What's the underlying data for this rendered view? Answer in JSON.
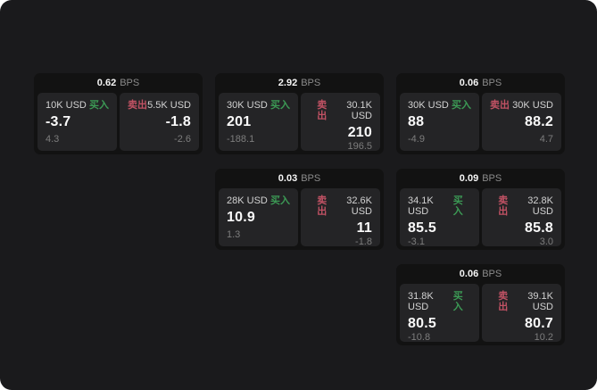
{
  "labels": {
    "bps_unit": "BPS",
    "buy": "买入",
    "sell": "卖出"
  },
  "colors": {
    "buy": "#3c9a55",
    "sell": "#c15264",
    "background": "#1a1a1c",
    "card": "#121212",
    "panel": "#242426"
  },
  "cards": [
    {
      "row": 1,
      "col": 1,
      "bps": "0.62",
      "buy": {
        "size": "10K USD",
        "value": "-3.7",
        "sub": "4.3"
      },
      "sell": {
        "size": "5.5K USD",
        "value": "-1.8",
        "sub": "-2.6"
      }
    },
    {
      "row": 1,
      "col": 2,
      "bps": "2.92",
      "buy": {
        "size": "30K USD",
        "value": "201",
        "sub": "-188.1"
      },
      "sell": {
        "size": "30.1K USD",
        "value": "210",
        "sub": "196.5"
      }
    },
    {
      "row": 1,
      "col": 3,
      "bps": "0.06",
      "buy": {
        "size": "30K USD",
        "value": "88",
        "sub": "-4.9"
      },
      "sell": {
        "size": "30K USD",
        "value": "88.2",
        "sub": "4.7"
      }
    },
    {
      "row": 2,
      "col": 2,
      "bps": "0.03",
      "buy": {
        "size": "28K USD",
        "value": "10.9",
        "sub": "1.3"
      },
      "sell": {
        "size": "32.6K USD",
        "value": "11",
        "sub": "-1.8"
      }
    },
    {
      "row": 2,
      "col": 3,
      "bps": "0.09",
      "buy": {
        "size": "34.1K USD",
        "value": "85.5",
        "sub": "-3.1"
      },
      "sell": {
        "size": "32.8K USD",
        "value": "85.8",
        "sub": "3.0"
      }
    },
    {
      "row": 3,
      "col": 3,
      "bps": "0.06",
      "buy": {
        "size": "31.8K USD",
        "value": "80.5",
        "sub": "-10.8"
      },
      "sell": {
        "size": "39.1K USD",
        "value": "80.7",
        "sub": "10.2"
      }
    }
  ]
}
